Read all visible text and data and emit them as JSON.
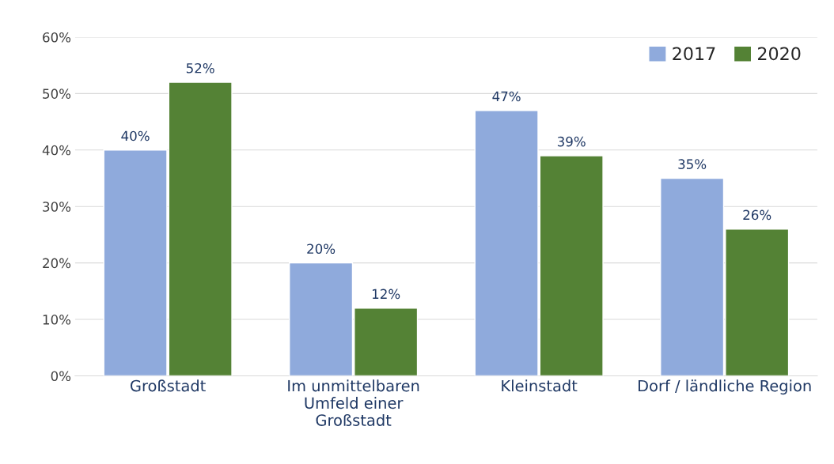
{
  "chart_data": {
    "type": "bar",
    "categories": [
      "Großstadt",
      "Im unmittelbaren\nUmfeld einer\nGroßstadt",
      "Kleinstadt",
      "Dorf / ländliche Region"
    ],
    "series": [
      {
        "name": "2017",
        "color": "#8faadc",
        "values": [
          40,
          20,
          47,
          35
        ],
        "value_labels": [
          "40%",
          "20%",
          "47%",
          "35%"
        ]
      },
      {
        "name": "2020",
        "color": "#548235",
        "values": [
          52,
          12,
          39,
          26
        ],
        "value_labels": [
          "52%",
          "12%",
          "39%",
          "26%"
        ]
      }
    ],
    "ylim": [
      0,
      60
    ],
    "yticks": [
      {
        "value": 0,
        "label": "0%"
      },
      {
        "value": 10,
        "label": "10%"
      },
      {
        "value": 20,
        "label": "20%"
      },
      {
        "value": 30,
        "label": "30%"
      },
      {
        "value": 40,
        "label": "40%"
      },
      {
        "value": 50,
        "label": "50%"
      },
      {
        "value": 60,
        "label": "60%"
      }
    ],
    "grid": "y",
    "legend": "top right"
  }
}
